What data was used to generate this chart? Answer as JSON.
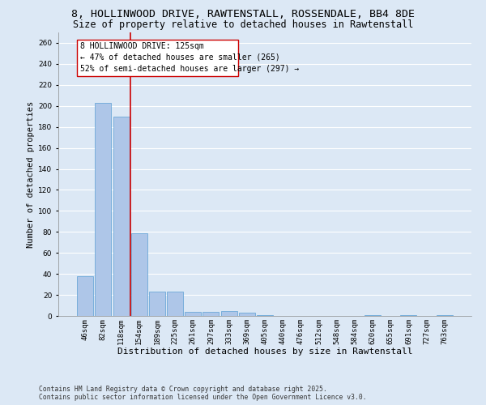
{
  "title": "8, HOLLINWOOD DRIVE, RAWTENSTALL, ROSSENDALE, BB4 8DE",
  "subtitle": "Size of property relative to detached houses in Rawtenstall",
  "xlabel": "Distribution of detached houses by size in Rawtenstall",
  "ylabel": "Number of detached properties",
  "categories": [
    "46sqm",
    "82sqm",
    "118sqm",
    "154sqm",
    "189sqm",
    "225sqm",
    "261sqm",
    "297sqm",
    "333sqm",
    "369sqm",
    "405sqm",
    "440sqm",
    "476sqm",
    "512sqm",
    "548sqm",
    "584sqm",
    "620sqm",
    "655sqm",
    "691sqm",
    "727sqm",
    "763sqm"
  ],
  "values": [
    38,
    203,
    190,
    79,
    23,
    23,
    4,
    4,
    5,
    3,
    1,
    0,
    0,
    0,
    0,
    0,
    1,
    0,
    1,
    0,
    1
  ],
  "bar_color": "#aec6e8",
  "bar_edge_color": "#5a9fd4",
  "vline_x": 2.5,
  "vline_color": "#cc0000",
  "ylim": [
    0,
    270
  ],
  "yticks": [
    0,
    20,
    40,
    60,
    80,
    100,
    120,
    140,
    160,
    180,
    200,
    220,
    240,
    260
  ],
  "annotation_title": "8 HOLLINWOOD DRIVE: 125sqm",
  "annotation_line1": "← 47% of detached houses are smaller (265)",
  "annotation_line2": "52% of semi-detached houses are larger (297) →",
  "annotation_box_color": "#cc0000",
  "background_color": "#dce8f5",
  "grid_color": "#ffffff",
  "footer_line1": "Contains HM Land Registry data © Crown copyright and database right 2025.",
  "footer_line2": "Contains public sector information licensed under the Open Government Licence v3.0.",
  "title_fontsize": 9.5,
  "subtitle_fontsize": 8.5,
  "xlabel_fontsize": 8,
  "ylabel_fontsize": 7.5,
  "tick_fontsize": 6.5,
  "annotation_fontsize": 7,
  "footer_fontsize": 5.8
}
